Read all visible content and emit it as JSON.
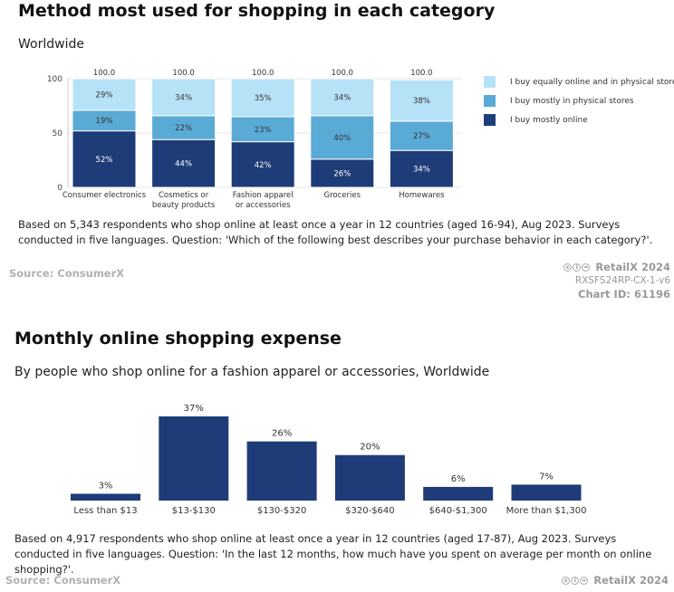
{
  "chart1": {
    "title": "Method most used for shopping in each category",
    "subtitle": "Worldwide",
    "note": "Based on 5,343 respondents who shop online at least once a year in 12 countries (aged 16-94), Aug 2023. Surveys conducted in five languages. Question: 'Which of the following best describes your purchase behavior in each category?'.",
    "source": "Source: ConsumerX",
    "brand": "RetailX 2024",
    "code": "RXSFS24RP-CX-1-v6",
    "chart_id": "Chart ID: 61196",
    "colors": {
      "online": "#1d3c78",
      "physical": "#5aaad6",
      "equally": "#b6e2f7"
    }
  },
  "chart2": {
    "title": "Monthly online shopping expense",
    "subtitle": "By people who shop online for a fashion apparel or accessories, Worldwide",
    "note": "Based on 4,917 respondents who shop online at least once a year in 12 countries (aged 17-87), Aug 2023. Surveys conducted in five languages. Question: 'In the last 12 months, how much have you spent on average per month on online shopping?'.",
    "source": "Source: ConsumerX",
    "brand": "RetailX 2024",
    "colors": {
      "bar": "#1d3c78"
    }
  },
  "chart_data": [
    {
      "type": "bar",
      "stacked": true,
      "title": "Method most used for shopping in each category",
      "subtitle": "Worldwide",
      "categories": [
        [
          "Consumer electronics"
        ],
        [
          "Cosmetics or",
          "beauty products"
        ],
        [
          "Fashion apparel",
          "or accessories"
        ],
        [
          "Groceries"
        ],
        [
          "Homewares"
        ]
      ],
      "totals": [
        "100.0",
        "100.0",
        "100.0",
        "100.0",
        "100.0"
      ],
      "series": [
        {
          "name": "I buy mostly online",
          "values": [
            52,
            44,
            42,
            26,
            34
          ]
        },
        {
          "name": "I buy mostly in physical stores",
          "values": [
            19,
            22,
            23,
            40,
            27
          ]
        },
        {
          "name": "I buy equally online and in physical stores",
          "values": [
            29,
            34,
            35,
            34,
            38
          ]
        }
      ],
      "ylim": [
        0,
        100
      ],
      "yticks": [
        0,
        50,
        100
      ],
      "legend": "right"
    },
    {
      "type": "bar",
      "title": "Monthly online shopping expense",
      "subtitle": "By people who shop online for a fashion apparel or accessories, Worldwide",
      "categories": [
        "Less than $13",
        "$13-$130",
        "$130-$320",
        "$320-$640",
        "$640-$1,300",
        "More than $1,300"
      ],
      "values": [
        3,
        37,
        26,
        20,
        6,
        7
      ],
      "value_labels": [
        "3%",
        "37%",
        "26%",
        "20%",
        "6%",
        "7%"
      ],
      "ylim": [
        0,
        37
      ]
    }
  ]
}
